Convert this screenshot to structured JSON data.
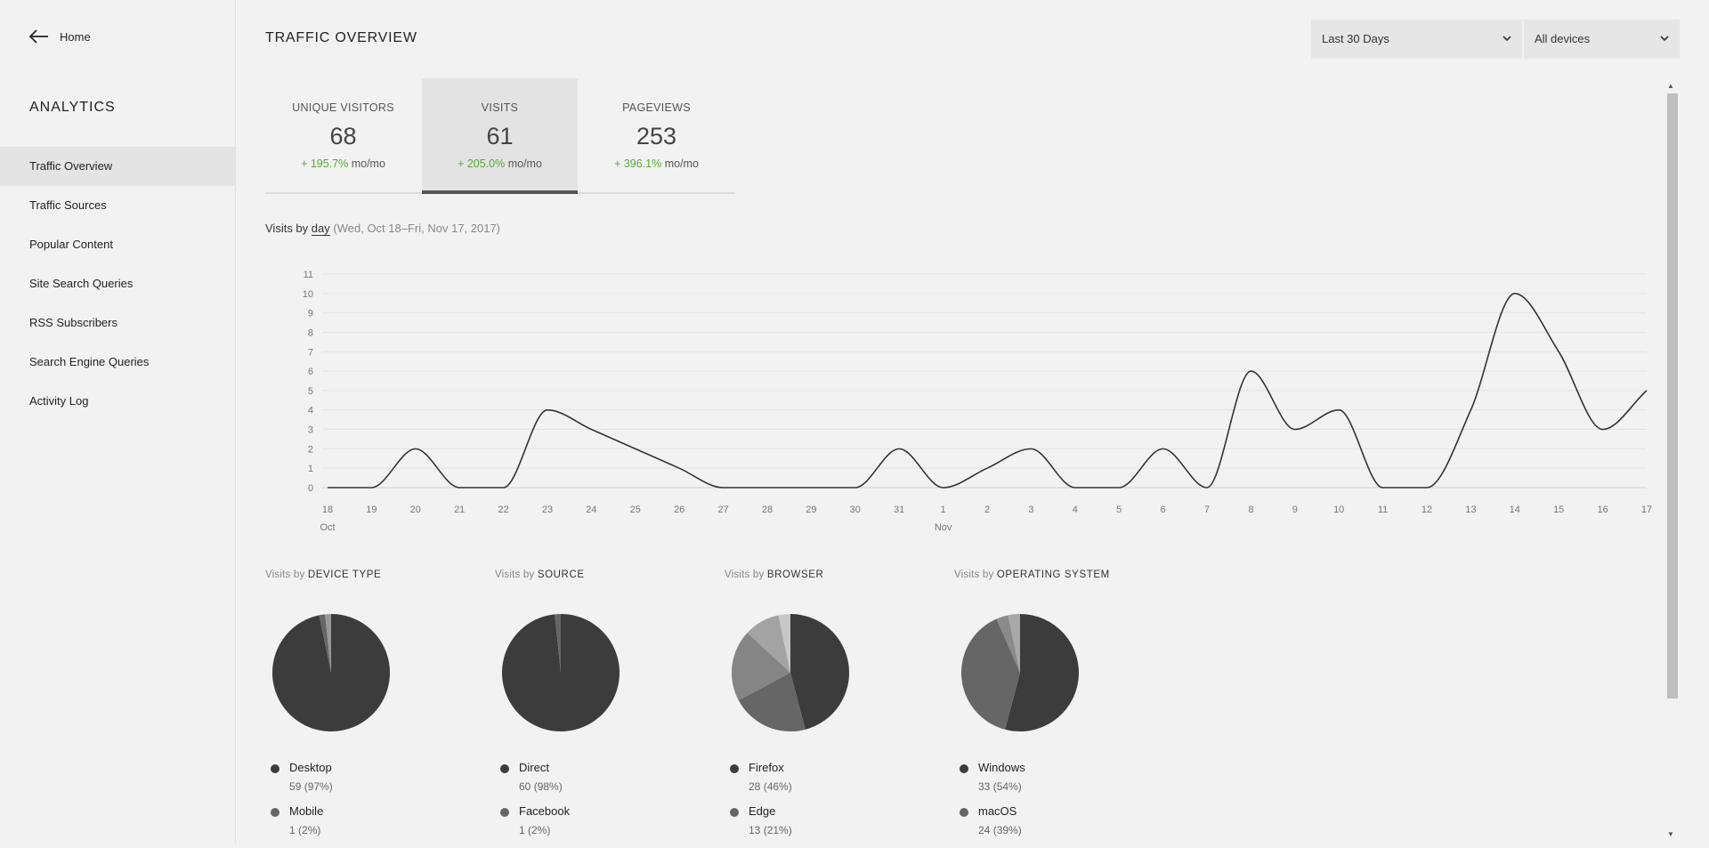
{
  "sidebar": {
    "home_label": "Home",
    "title": "ANALYTICS",
    "items": [
      {
        "label": "Traffic Overview"
      },
      {
        "label": "Traffic Sources"
      },
      {
        "label": "Popular Content"
      },
      {
        "label": "Site Search Queries"
      },
      {
        "label": "RSS Subscribers"
      },
      {
        "label": "Search Engine Queries"
      },
      {
        "label": "Activity Log"
      }
    ],
    "active_index": 0
  },
  "header": {
    "title": "TRAFFIC OVERVIEW",
    "range_select": "Last 30 Days",
    "device_select": "All devices"
  },
  "stats": [
    {
      "label": "UNIQUE VISITORS",
      "value": "68",
      "change": "+ 195.7%",
      "unit": "mo/mo"
    },
    {
      "label": "VISITS",
      "value": "61",
      "change": "+ 205.0%",
      "unit": "mo/mo"
    },
    {
      "label": "PAGEVIEWS",
      "value": "253",
      "change": "+ 396.1%",
      "unit": "mo/mo"
    }
  ],
  "active_stat": 1,
  "chart_header": {
    "prefix": "Visits by",
    "period": "day",
    "range": "(Wed, Oct 18–Fri, Nov 17, 2017)"
  },
  "chart_data": {
    "type": "line",
    "x": [
      "18",
      "19",
      "20",
      "21",
      "22",
      "23",
      "24",
      "25",
      "26",
      "27",
      "28",
      "29",
      "30",
      "31",
      "1",
      "2",
      "3",
      "4",
      "5",
      "6",
      "7",
      "8",
      "9",
      "10",
      "11",
      "12",
      "13",
      "14",
      "15",
      "16",
      "17"
    ],
    "month_labels": [
      {
        "at": 0,
        "label": "Oct"
      },
      {
        "at": 14,
        "label": "Nov"
      }
    ],
    "series": [
      {
        "values": [
          0,
          0,
          2,
          0,
          0,
          4,
          3,
          2,
          1,
          0,
          0,
          0,
          0,
          2,
          0,
          1,
          2,
          0,
          0,
          2,
          0,
          6,
          3,
          4,
          0,
          0,
          4,
          10,
          7,
          3,
          5
        ]
      }
    ],
    "ylim": [
      0,
      11
    ],
    "yticks": [
      0,
      1,
      2,
      3,
      4,
      5,
      6,
      7,
      8,
      9,
      10,
      11
    ],
    "grid": true,
    "line_color": "#333333"
  },
  "pies": [
    {
      "prefix": "Visits by",
      "title": "DEVICE TYPE",
      "slices": [
        {
          "name": "Desktop",
          "count": 59,
          "pct": "(97%)",
          "color": "#3c3c3c"
        },
        {
          "name": "Mobile",
          "count": 1,
          "pct": "(2%)",
          "color": "#666666"
        },
        {
          "name": "",
          "count": 1,
          "pct": "",
          "color": "#999999"
        }
      ]
    },
    {
      "prefix": "Visits by",
      "title": "SOURCE",
      "slices": [
        {
          "name": "Direct",
          "count": 60,
          "pct": "(98%)",
          "color": "#3c3c3c"
        },
        {
          "name": "Facebook",
          "count": 1,
          "pct": "(2%)",
          "color": "#666666"
        }
      ]
    },
    {
      "prefix": "Visits by",
      "title": "BROWSER",
      "slices": [
        {
          "name": "Firefox",
          "count": 28,
          "pct": "(46%)",
          "color": "#3c3c3c"
        },
        {
          "name": "Edge",
          "count": 13,
          "pct": "(21%)",
          "color": "#666666"
        },
        {
          "name": "",
          "count": 12,
          "pct": "",
          "color": "#858585"
        },
        {
          "name": "",
          "count": 6,
          "pct": "",
          "color": "#a3a3a3"
        },
        {
          "name": "",
          "count": 2,
          "pct": "",
          "color": "#c8c8c8"
        }
      ]
    },
    {
      "prefix": "Visits by",
      "title": "OPERATING SYSTEM",
      "slices": [
        {
          "name": "Windows",
          "count": 33,
          "pct": "(54%)",
          "color": "#3c3c3c"
        },
        {
          "name": "macOS",
          "count": 24,
          "pct": "(39%)",
          "color": "#666666"
        },
        {
          "name": "",
          "count": 2,
          "pct": "",
          "color": "#8a8a8a"
        },
        {
          "name": "",
          "count": 2,
          "pct": "",
          "color": "#a8a8a8"
        }
      ]
    }
  ]
}
